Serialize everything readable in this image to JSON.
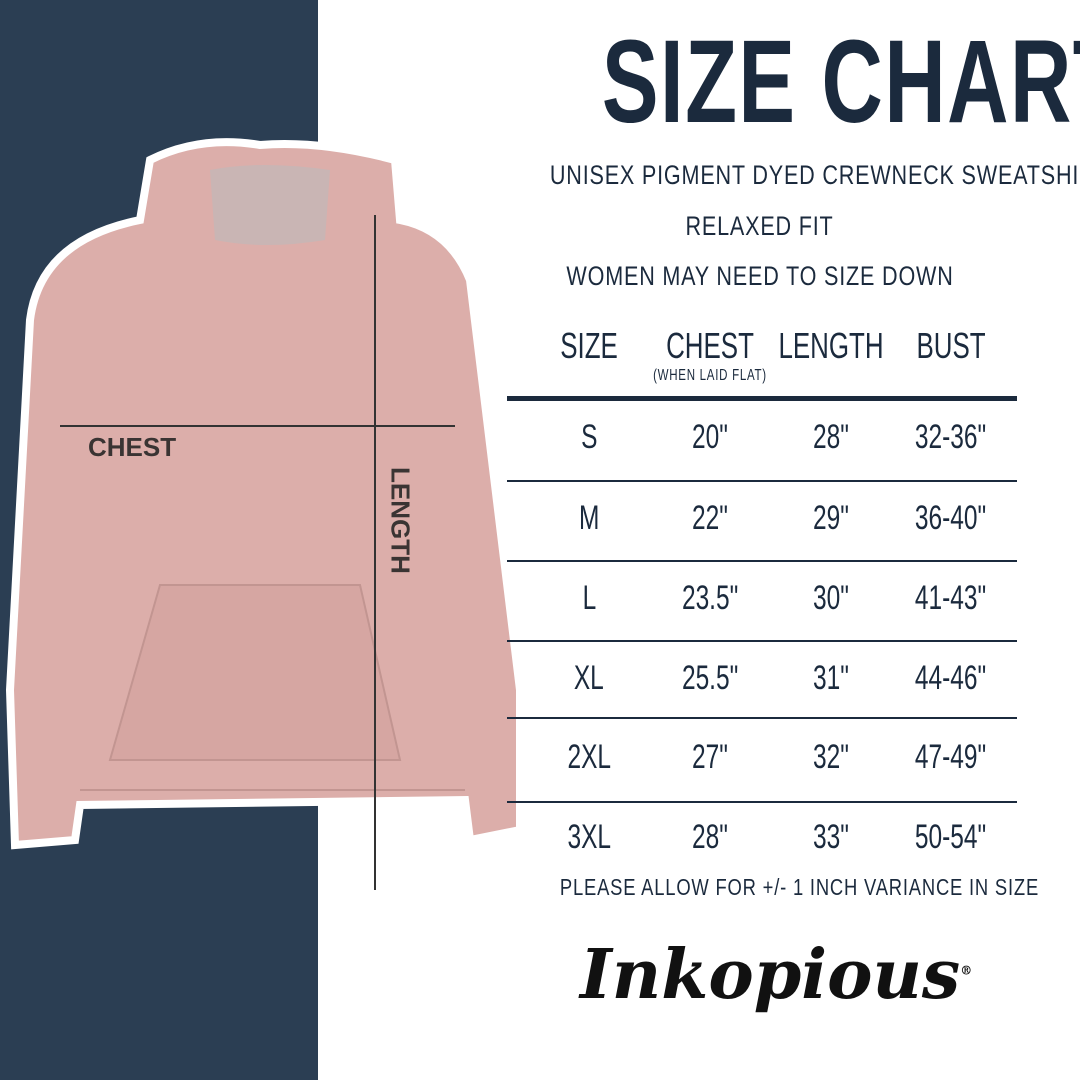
{
  "title": "SIZE CHART",
  "subtitle": "UNISEX PIGMENT DYED CREWNECK SWEATSHIRT",
  "fit": "RELAXED FIT",
  "advice": "WOMEN MAY NEED TO SIZE DOWN",
  "diagram": {
    "chest_label": "CHEST",
    "length_label": "LENGTH"
  },
  "table": {
    "headers": [
      "SIZE",
      "CHEST",
      "LENGTH",
      "BUST"
    ],
    "chest_note": "(WHEN LAID FLAT)",
    "rows": [
      [
        "S",
        "20\"",
        "28\"",
        "32-36\""
      ],
      [
        "M",
        "22\"",
        "29\"",
        "36-40\""
      ],
      [
        "L",
        "23.5\"",
        "30\"",
        "41-43\""
      ],
      [
        "XL",
        "25.5\"",
        "31\"",
        "44-46\""
      ],
      [
        "2XL",
        "27\"",
        "32\"",
        "47-49\""
      ],
      [
        "3XL",
        "28\"",
        "33\"",
        "50-54\""
      ]
    ]
  },
  "footnote": "PLEASE ALLOW FOR +/- 1 INCH VARIANCE IN SIZE",
  "brand": "Inkopious",
  "colors": {
    "navy": "#2b3e53",
    "text": "#1b2a3d",
    "hoodie": "#dcaeaa"
  }
}
